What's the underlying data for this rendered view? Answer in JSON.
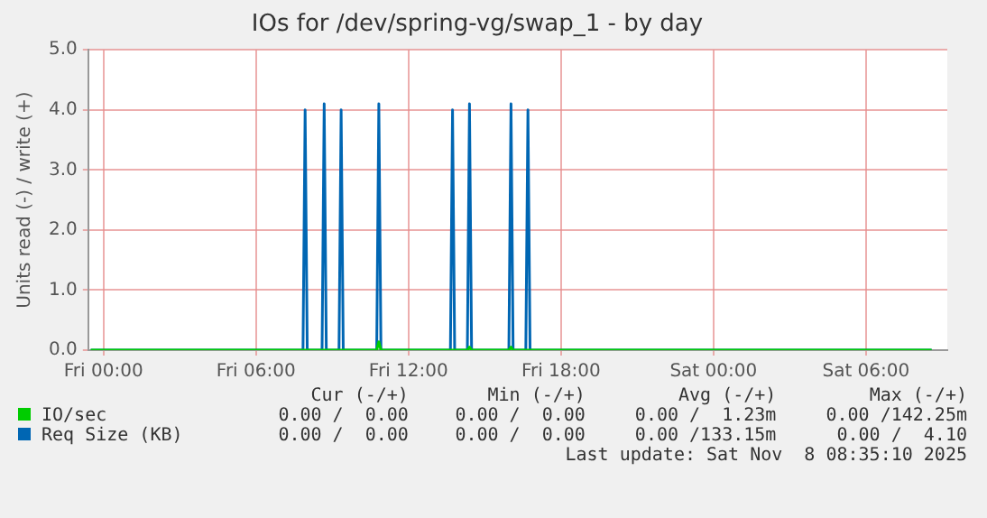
{
  "chart_data": {
    "type": "line",
    "title": "IOs for /dev/spring-vg/swap_1 - by day",
    "ylabel": "Units read (-) / write (+)",
    "xlim": [
      "2025-11-06T23:24",
      "2025-11-08T09:12"
    ],
    "xticks": [
      {
        "value": "2025-11-07T00:00",
        "label": "Fri 00:00"
      },
      {
        "value": "2025-11-07T06:00",
        "label": "Fri 06:00"
      },
      {
        "value": "2025-11-07T12:00",
        "label": "Fri 12:00"
      },
      {
        "value": "2025-11-07T18:00",
        "label": "Fri 18:00"
      },
      {
        "value": "2025-11-08T00:00",
        "label": "Sat 00:00"
      },
      {
        "value": "2025-11-08T06:00",
        "label": "Sat 06:00"
      }
    ],
    "ylim": [
      0,
      5
    ],
    "yticks": [
      {
        "value": 0,
        "label": "0.0"
      },
      {
        "value": 1,
        "label": "1.0"
      },
      {
        "value": 2,
        "label": "2.0"
      },
      {
        "value": 3,
        "label": "3.0"
      },
      {
        "value": 4,
        "label": "4.0"
      },
      {
        "value": 5,
        "label": "5.0"
      }
    ],
    "grid": true,
    "legend": "bottom",
    "marker": "none",
    "line_style": "solid",
    "series": [
      {
        "name": "IO/sec",
        "color": "#00cc00",
        "x": [
          "2025-11-06T23:30",
          "2025-11-07T10:45",
          "2025-11-07T10:50",
          "2025-11-07T10:55",
          "2025-11-07T14:19",
          "2025-11-07T14:24",
          "2025-11-07T14:29",
          "2025-11-07T15:57",
          "2025-11-07T16:02",
          "2025-11-07T16:07",
          "2025-11-08T08:35"
        ],
        "values": [
          0,
          0,
          0.14,
          0,
          0,
          0.05,
          0,
          0,
          0.05,
          0,
          0
        ]
      },
      {
        "name": "Req Size (KB)",
        "color": "#0066b3",
        "x": [
          "2025-11-06T23:30",
          "2025-11-07T07:51",
          "2025-11-07T07:56",
          "2025-11-07T08:01",
          "2025-11-07T08:36",
          "2025-11-07T08:41",
          "2025-11-07T08:46",
          "2025-11-07T09:16",
          "2025-11-07T09:21",
          "2025-11-07T09:26",
          "2025-11-07T10:45",
          "2025-11-07T10:50",
          "2025-11-07T10:55",
          "2025-11-07T13:39",
          "2025-11-07T13:44",
          "2025-11-07T13:49",
          "2025-11-07T14:19",
          "2025-11-07T14:24",
          "2025-11-07T14:29",
          "2025-11-07T15:57",
          "2025-11-07T16:02",
          "2025-11-07T16:07",
          "2025-11-07T16:37",
          "2025-11-07T16:42",
          "2025-11-07T16:47",
          "2025-11-08T08:35"
        ],
        "values": [
          0,
          0,
          4.0,
          0,
          0,
          4.1,
          0,
          0,
          4.0,
          0,
          0,
          4.1,
          0,
          0,
          4.0,
          0,
          0,
          4.1,
          0,
          0,
          4.1,
          0,
          0,
          4.0,
          0,
          0
        ]
      }
    ],
    "annotations": [
      "Cur (-/+)",
      "Min (-/+)",
      "Avg (-/+)",
      "Max (-/+)",
      "0.00 /  0.00",
      "0.00 /  0.00",
      "0.00 /  1.23m",
      "0.00 /142.25m",
      "0.00 /  0.00",
      "0.00 /  0.00",
      "0.00 /133.15m",
      "0.00 /  4.10",
      "Last update: Sat Nov  8 08:35:10 2025"
    ]
  }
}
